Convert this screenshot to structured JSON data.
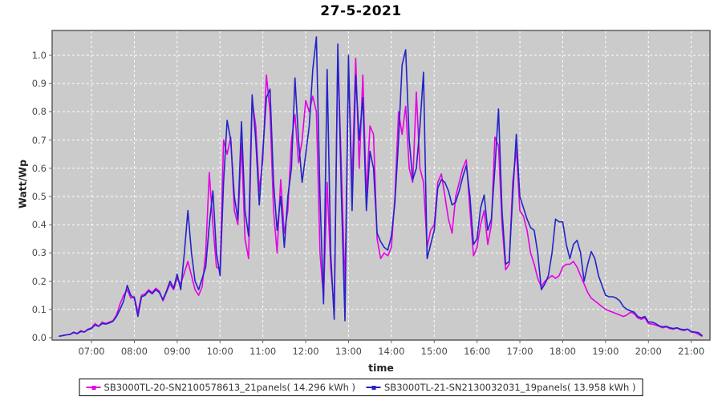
{
  "title": "27-5-2021",
  "axis": {
    "y_label": "Watt/Wp",
    "x_label": "time",
    "y_ticks": [
      "0.0",
      "0.1",
      "0.2",
      "0.3",
      "0.4",
      "0.5",
      "0.6",
      "0.7",
      "0.8",
      "0.9",
      "1.0"
    ],
    "x_ticks": [
      "07:00",
      "08:00",
      "09:00",
      "10:00",
      "11:00",
      "12:00",
      "13:00",
      "14:00",
      "15:00",
      "16:00",
      "17:00",
      "18:00",
      "19:00",
      "20:00",
      "21:00"
    ]
  },
  "colors": {
    "plot_background": "#cbcbcb",
    "grid": "#ffffff",
    "plot_border": "#5c5c5c",
    "tick": "#666666",
    "series1": "#e600e6",
    "series2": "#2323c8"
  },
  "chart_data": {
    "type": "line",
    "title": "27-5-2021",
    "xlabel": "time",
    "ylabel": "Watt/Wp",
    "ylim": [
      0.0,
      1.1
    ],
    "x_axis_range": [
      "06:15",
      "21:25"
    ],
    "x_start_time": "06:15",
    "x_step_minutes": 5,
    "grid": "white dashed, both axes",
    "legend_position": "bottom-center boxed",
    "series": [
      {
        "name": "SB3000TL-20-SN2100578613_21panels( 14.296 kWh )",
        "color": "#e600e6",
        "values": [
          0.005,
          0.008,
          0.01,
          0.012,
          0.02,
          0.015,
          0.025,
          0.02,
          0.03,
          0.035,
          0.05,
          0.04,
          0.055,
          0.05,
          0.055,
          0.06,
          0.08,
          0.12,
          0.15,
          0.17,
          0.14,
          0.145,
          0.09,
          0.15,
          0.155,
          0.17,
          0.16,
          0.175,
          0.165,
          0.13,
          0.16,
          0.19,
          0.17,
          0.21,
          0.19,
          0.23,
          0.27,
          0.22,
          0.17,
          0.15,
          0.18,
          0.3,
          0.585,
          0.4,
          0.25,
          0.24,
          0.7,
          0.65,
          0.71,
          0.45,
          0.4,
          0.69,
          0.35,
          0.28,
          0.84,
          0.75,
          0.52,
          0.63,
          0.93,
          0.8,
          0.45,
          0.3,
          0.56,
          0.37,
          0.45,
          0.7,
          0.79,
          0.62,
          0.7,
          0.84,
          0.8,
          0.855,
          0.8,
          0.3,
          0.14,
          0.55,
          0.25,
          0.1,
          1.0,
          0.6,
          0.17,
          0.95,
          0.55,
          0.99,
          0.6,
          0.93,
          0.5,
          0.75,
          0.72,
          0.35,
          0.28,
          0.3,
          0.29,
          0.32,
          0.5,
          0.8,
          0.72,
          0.82,
          0.6,
          0.55,
          0.87,
          0.6,
          0.55,
          0.32,
          0.38,
          0.4,
          0.55,
          0.58,
          0.5,
          0.42,
          0.37,
          0.5,
          0.55,
          0.6,
          0.63,
          0.45,
          0.29,
          0.32,
          0.4,
          0.45,
          0.33,
          0.4,
          0.71,
          0.68,
          0.4,
          0.24,
          0.26,
          0.55,
          0.67,
          0.45,
          0.43,
          0.38,
          0.3,
          0.26,
          0.21,
          0.18,
          0.2,
          0.21,
          0.22,
          0.21,
          0.22,
          0.25,
          0.26,
          0.26,
          0.27,
          0.25,
          0.22,
          0.19,
          0.16,
          0.14,
          0.13,
          0.12,
          0.11,
          0.1,
          0.095,
          0.09,
          0.085,
          0.08,
          0.075,
          0.08,
          0.09,
          0.085,
          0.07,
          0.065,
          0.07,
          0.05,
          0.048,
          0.045,
          0.04,
          0.035,
          0.038,
          0.032,
          0.03,
          0.034,
          0.028,
          0.025,
          0.03,
          0.02,
          0.018,
          0.012,
          0.005
        ]
      },
      {
        "name": "SB3000TL-21-SN2130032031_19panels( 13.958 kWh )",
        "color": "#2323c8",
        "values": [
          0.005,
          0.007,
          0.01,
          0.011,
          0.018,
          0.014,
          0.022,
          0.02,
          0.028,
          0.032,
          0.045,
          0.04,
          0.05,
          0.048,
          0.052,
          0.058,
          0.075,
          0.1,
          0.13,
          0.185,
          0.15,
          0.14,
          0.075,
          0.145,
          0.15,
          0.165,
          0.155,
          0.17,
          0.16,
          0.135,
          0.165,
          0.2,
          0.175,
          0.225,
          0.17,
          0.3,
          0.45,
          0.3,
          0.2,
          0.17,
          0.21,
          0.25,
          0.4,
          0.52,
          0.3,
          0.22,
          0.55,
          0.77,
          0.7,
          0.5,
          0.42,
          0.765,
          0.45,
          0.36,
          0.86,
          0.7,
          0.47,
          0.66,
          0.85,
          0.88,
          0.55,
          0.38,
          0.5,
          0.32,
          0.5,
          0.6,
          0.92,
          0.7,
          0.55,
          0.65,
          0.75,
          0.95,
          1.065,
          0.5,
          0.12,
          0.95,
          0.3,
          0.065,
          1.04,
          0.5,
          0.06,
          1.0,
          0.45,
          0.93,
          0.7,
          0.85,
          0.45,
          0.66,
          0.6,
          0.37,
          0.34,
          0.32,
          0.31,
          0.36,
          0.48,
          0.7,
          0.965,
          1.02,
          0.7,
          0.56,
          0.6,
          0.75,
          0.94,
          0.28,
          0.33,
          0.38,
          0.53,
          0.56,
          0.55,
          0.52,
          0.47,
          0.48,
          0.52,
          0.57,
          0.61,
          0.5,
          0.33,
          0.35,
          0.46,
          0.505,
          0.38,
          0.42,
          0.6,
          0.81,
          0.45,
          0.26,
          0.27,
          0.5,
          0.72,
          0.5,
          0.46,
          0.42,
          0.39,
          0.38,
          0.3,
          0.17,
          0.19,
          0.22,
          0.3,
          0.42,
          0.41,
          0.41,
          0.33,
          0.28,
          0.33,
          0.345,
          0.3,
          0.2,
          0.26,
          0.305,
          0.28,
          0.22,
          0.185,
          0.15,
          0.145,
          0.145,
          0.14,
          0.13,
          0.11,
          0.1,
          0.095,
          0.09,
          0.075,
          0.07,
          0.075,
          0.055,
          0.055,
          0.05,
          0.042,
          0.038,
          0.04,
          0.035,
          0.032,
          0.035,
          0.03,
          0.028,
          0.03,
          0.022,
          0.02,
          0.018,
          0.008
        ]
      }
    ]
  }
}
